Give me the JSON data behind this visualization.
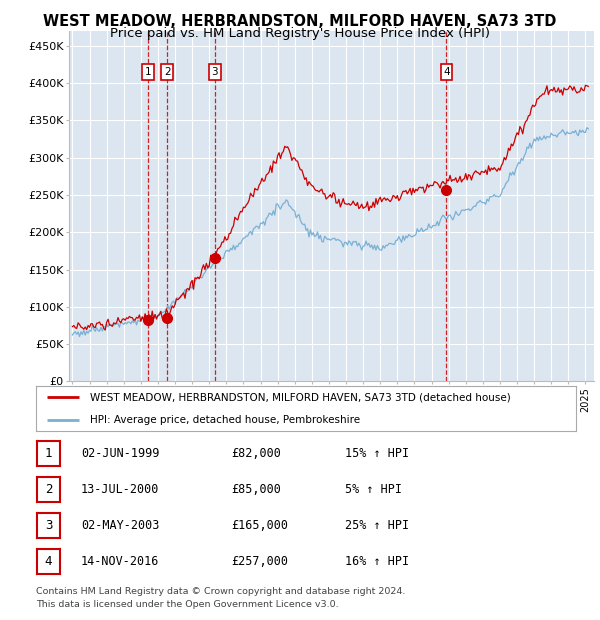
{
  "title": "WEST MEADOW, HERBRANDSTON, MILFORD HAVEN, SA73 3TD",
  "subtitle": "Price paid vs. HM Land Registry's House Price Index (HPI)",
  "title_fontsize": 10.5,
  "subtitle_fontsize": 9.5,
  "background_color": "#ffffff",
  "plot_bg_color": "#dce6f0",
  "grid_color": "#ffffff",
  "ylim": [
    0,
    470000
  ],
  "yticks": [
    0,
    50000,
    100000,
    150000,
    200000,
    250000,
    300000,
    350000,
    400000,
    450000
  ],
  "xlim_start": 1994.8,
  "xlim_end": 2025.5,
  "sale_dates": [
    1999.42,
    2000.54,
    2003.33,
    2016.87
  ],
  "sale_prices": [
    82000,
    85000,
    165000,
    257000
  ],
  "sale_labels": [
    "1",
    "2",
    "3",
    "4"
  ],
  "sale_info": [
    {
      "label": "1",
      "date": "02-JUN-1999",
      "price": "£82,000",
      "hpi": "15% ↑ HPI"
    },
    {
      "label": "2",
      "date": "13-JUL-2000",
      "price": "£85,000",
      "hpi": "5% ↑ HPI"
    },
    {
      "label": "3",
      "date": "02-MAY-2003",
      "price": "£165,000",
      "hpi": "25% ↑ HPI"
    },
    {
      "label": "4",
      "date": "14-NOV-2016",
      "price": "£257,000",
      "hpi": "16% ↑ HPI"
    }
  ],
  "red_line_color": "#cc0000",
  "blue_line_color": "#7ab0d4",
  "marker_color": "#cc0000",
  "vline_color": "#cc0000",
  "legend_label_red": "WEST MEADOW, HERBRANDSTON, MILFORD HAVEN, SA73 3TD (detached house)",
  "legend_label_blue": "HPI: Average price, detached house, Pembrokeshire",
  "footer1": "Contains HM Land Registry data © Crown copyright and database right 2024.",
  "footer2": "This data is licensed under the Open Government Licence v3.0."
}
